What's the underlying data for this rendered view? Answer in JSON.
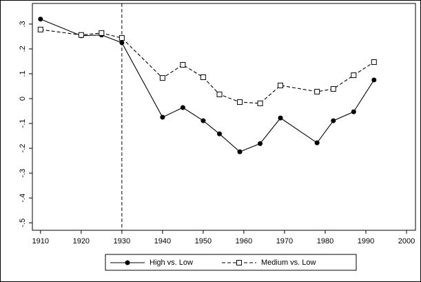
{
  "chart_data": {
    "type": "line",
    "x": [
      1910,
      1920,
      1925,
      1930,
      1940,
      1945,
      1950,
      1954,
      1959,
      1964,
      1969,
      1978,
      1982,
      1987,
      1992
    ],
    "series": [
      {
        "name": "High vs. Low",
        "color": "#000000",
        "style": "solid",
        "marker": "circle",
        "values": [
          0.32,
          0.253,
          0.256,
          0.225,
          -0.075,
          -0.036,
          -0.089,
          -0.142,
          -0.214,
          -0.181,
          -0.078,
          -0.178,
          -0.089,
          -0.053,
          0.075
        ]
      },
      {
        "name": "Medium vs. Low",
        "color": "#000000",
        "style": "dashed",
        "marker": "square-open",
        "values": [
          0.278,
          0.256,
          0.264,
          0.244,
          0.083,
          0.136,
          0.086,
          0.017,
          -0.014,
          -0.019,
          0.053,
          0.028,
          0.039,
          0.094,
          0.147
        ]
      }
    ],
    "xlim": [
      1908,
      2002.2
    ],
    "xticks": [
      1910,
      1920,
      1930,
      1940,
      1950,
      1960,
      1970,
      1980,
      1990,
      2000
    ],
    "ylim": [
      -0.53,
      0.383
    ],
    "yticks": [
      {
        "value": 0.3,
        "label": ".3"
      },
      {
        "value": 0.2,
        "label": ".2"
      },
      {
        "value": 0.1,
        "label": ".1"
      },
      0,
      {
        "value": -0.1,
        "label": "-.1"
      },
      {
        "value": -0.2,
        "label": "-.2"
      },
      {
        "value": -0.3,
        "label": "-.3"
      },
      {
        "value": -0.4,
        "label": "-.4"
      },
      {
        "value": -0.5,
        "label": "-.5"
      }
    ],
    "vline": 1930,
    "legend": "bottom"
  }
}
